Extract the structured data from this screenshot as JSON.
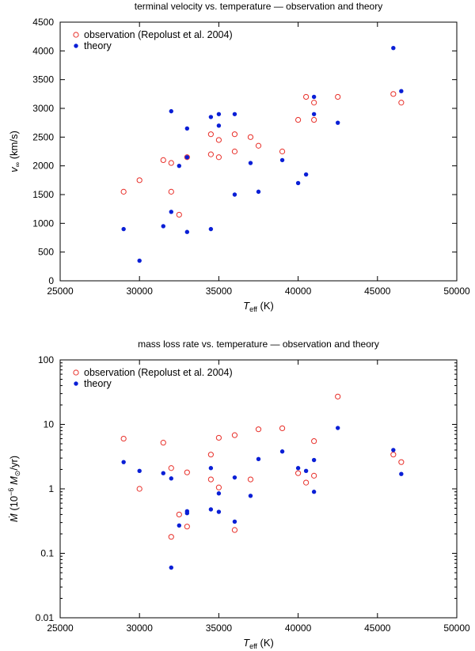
{
  "charts": [
    {
      "type": "scatter",
      "title": "terminal velocity vs. temperature — observation and theory",
      "xlabel": {
        "main": "T",
        "sub": "eff",
        "unit": " (K)"
      },
      "ylabel": {
        "main": "v",
        "sub": "∞",
        "unit": " (km/s)"
      },
      "xlim": [
        25000,
        50000
      ],
      "ylim": [
        0,
        4500
      ],
      "yscale": "linear",
      "xticks": [
        25000,
        30000,
        35000,
        40000,
        45000,
        50000
      ],
      "yticks": [
        0,
        500,
        1000,
        1500,
        2000,
        2500,
        3000,
        3500,
        4000,
        4500
      ],
      "ytick_labels": [
        "0",
        "500",
        "1000",
        "1500",
        "2000",
        "2500",
        "3000",
        "3500",
        "4000",
        "4500"
      ],
      "legend_position": "top-left",
      "series": [
        {
          "name": "observation (Repolust et al. 2004)",
          "marker": "open-circle",
          "color": "#e8302a",
          "points": [
            [
              29000,
              1550
            ],
            [
              30000,
              1750
            ],
            [
              31500,
              2100
            ],
            [
              32000,
              2050
            ],
            [
              32000,
              1550
            ],
            [
              32500,
              1150
            ],
            [
              33000,
              2150
            ],
            [
              34500,
              2550
            ],
            [
              34500,
              2200
            ],
            [
              35000,
              2450
            ],
            [
              35000,
              2150
            ],
            [
              36000,
              2550
            ],
            [
              36000,
              2250
            ],
            [
              37000,
              2500
            ],
            [
              37500,
              2350
            ],
            [
              39000,
              2250
            ],
            [
              40000,
              2800
            ],
            [
              40500,
              3200
            ],
            [
              41000,
              3100
            ],
            [
              41000,
              2800
            ],
            [
              42500,
              3200
            ],
            [
              46000,
              3250
            ],
            [
              46500,
              3100
            ]
          ]
        },
        {
          "name": "theory",
          "marker": "filled-circle",
          "color": "#0a1fd6",
          "points": [
            [
              29000,
              900
            ],
            [
              30000,
              350
            ],
            [
              31500,
              950
            ],
            [
              32000,
              2950
            ],
            [
              32000,
              1200
            ],
            [
              32500,
              2000
            ],
            [
              33000,
              2650
            ],
            [
              33000,
              2150
            ],
            [
              33000,
              850
            ],
            [
              34500,
              2850
            ],
            [
              34500,
              900
            ],
            [
              35000,
              2900
            ],
            [
              35000,
              2700
            ],
            [
              36000,
              2900
            ],
            [
              36000,
              1500
            ],
            [
              37000,
              2050
            ],
            [
              37500,
              1550
            ],
            [
              39000,
              2100
            ],
            [
              40000,
              1700
            ],
            [
              40500,
              1850
            ],
            [
              41000,
              3200
            ],
            [
              41000,
              2900
            ],
            [
              42500,
              2750
            ],
            [
              46000,
              4050
            ],
            [
              46500,
              3300
            ]
          ]
        }
      ]
    },
    {
      "type": "scatter",
      "title": "mass loss rate vs. temperature — observation and theory",
      "xlabel": {
        "main": "T",
        "sub": "eff",
        "unit": " (K)"
      },
      "ylabel": {
        "main": "Ṁ",
        "pre": " (10",
        "sup": "−6",
        "mid": " M",
        "sub": "⊙",
        "unit": "/yr)"
      },
      "xlim": [
        25000,
        50000
      ],
      "ylim": [
        0.01,
        100
      ],
      "yscale": "log",
      "xticks": [
        25000,
        30000,
        35000,
        40000,
        45000,
        50000
      ],
      "yticks": [
        0.01,
        0.1,
        1,
        10,
        100
      ],
      "ytick_labels": [
        "0.01",
        "0.1",
        "1",
        "10",
        "100"
      ],
      "legend_position": "top-left",
      "series": [
        {
          "name": "observation (Repolust et al. 2004)",
          "marker": "open-circle",
          "color": "#e8302a",
          "points": [
            [
              29000,
              6.0
            ],
            [
              30000,
              1.0
            ],
            [
              31500,
              5.2
            ],
            [
              32000,
              2.1
            ],
            [
              32000,
              0.18
            ],
            [
              32500,
              0.4
            ],
            [
              33000,
              1.8
            ],
            [
              33000,
              0.26
            ],
            [
              34500,
              3.4
            ],
            [
              34500,
              1.4
            ],
            [
              35000,
              6.2
            ],
            [
              35000,
              1.05
            ],
            [
              36000,
              6.8
            ],
            [
              36000,
              0.23
            ],
            [
              37000,
              1.4
            ],
            [
              37500,
              8.4
            ],
            [
              39000,
              8.7
            ],
            [
              40000,
              1.75
            ],
            [
              40500,
              1.25
            ],
            [
              41000,
              5.5
            ],
            [
              41000,
              1.6
            ],
            [
              42500,
              27
            ],
            [
              46000,
              3.4
            ],
            [
              46500,
              2.6
            ]
          ]
        },
        {
          "name": "theory",
          "marker": "filled-circle",
          "color": "#0a1fd6",
          "points": [
            [
              29000,
              2.6
            ],
            [
              30000,
              1.9
            ],
            [
              31500,
              1.75
            ],
            [
              32000,
              1.45
            ],
            [
              32000,
              0.06
            ],
            [
              32500,
              0.27
            ],
            [
              33000,
              0.45
            ],
            [
              33000,
              0.42
            ],
            [
              34500,
              2.1
            ],
            [
              34500,
              0.48
            ],
            [
              35000,
              0.85
            ],
            [
              35000,
              0.44
            ],
            [
              36000,
              1.5
            ],
            [
              36000,
              0.31
            ],
            [
              37000,
              0.78
            ],
            [
              37500,
              2.9
            ],
            [
              39000,
              3.8
            ],
            [
              40000,
              2.1
            ],
            [
              40500,
              1.9
            ],
            [
              41000,
              2.8
            ],
            [
              41000,
              0.9
            ],
            [
              42500,
              8.8
            ],
            [
              46000,
              4.0
            ],
            [
              46500,
              1.7
            ]
          ]
        }
      ]
    }
  ]
}
